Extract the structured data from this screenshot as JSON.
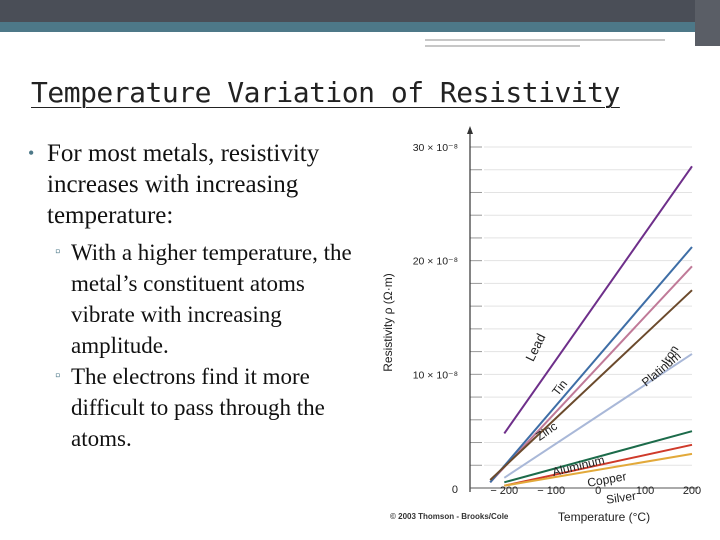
{
  "slide": {
    "title": "Temperature Variation of Resistivity",
    "bullet": "For most metals, resistivity increases with increasing temperature:",
    "sub_bullets": [
      "With a higher temperature, the metal’s constituent atoms vibrate with increasing amplitude.",
      "The electrons find it more difficult to pass through the atoms."
    ],
    "theme": {
      "accent": "#4d7888",
      "bar": "#4a4e57"
    }
  },
  "chart_data": {
    "type": "line",
    "xlabel": "Temperature (°C)",
    "ylabel": "Resistivity ρ (Ω·m)",
    "credit": "© 2003 Thomson - Brooks/Cole",
    "xlim": [
      -273,
      200
    ],
    "ylim": [
      0,
      30
    ],
    "x_ticks": [
      "− 200",
      "− 100",
      "0",
      "100",
      "200"
    ],
    "y_ticks": [
      "0",
      "10 × 10⁻⁸",
      "20 × 10⁻⁸",
      "30 × 10⁻⁸"
    ],
    "series": [
      {
        "name": "Lead",
        "color": "#6e2f8a",
        "x": [
          -200,
          200
        ],
        "y": [
          4.8,
          28.3
        ]
      },
      {
        "name": "Iron",
        "color": "#c07a98",
        "x": [
          -230,
          200
        ],
        "y": [
          0.5,
          19.5
        ]
      },
      {
        "name": "Tin",
        "color": "#3e6ea6",
        "x": [
          -230,
          200
        ],
        "y": [
          0.5,
          21.2
        ]
      },
      {
        "name": "Platinum",
        "color": "#6b4a2c",
        "x": [
          -230,
          200
        ],
        "y": [
          0.7,
          17.4
        ]
      },
      {
        "name": "Zinc",
        "color": "#a9b8d8",
        "x": [
          -200,
          200
        ],
        "y": [
          0.9,
          11.8
        ]
      },
      {
        "name": "Aluminum",
        "color": "#1c6b4a",
        "x": [
          -200,
          200
        ],
        "y": [
          0.5,
          5.0
        ]
      },
      {
        "name": "Copper",
        "color": "#cf3a2a",
        "x": [
          -200,
          200
        ],
        "y": [
          0.2,
          3.8
        ]
      },
      {
        "name": "Silver",
        "color": "#e2a93a",
        "x": [
          -200,
          200
        ],
        "y": [
          0.2,
          3.0
        ]
      }
    ]
  }
}
